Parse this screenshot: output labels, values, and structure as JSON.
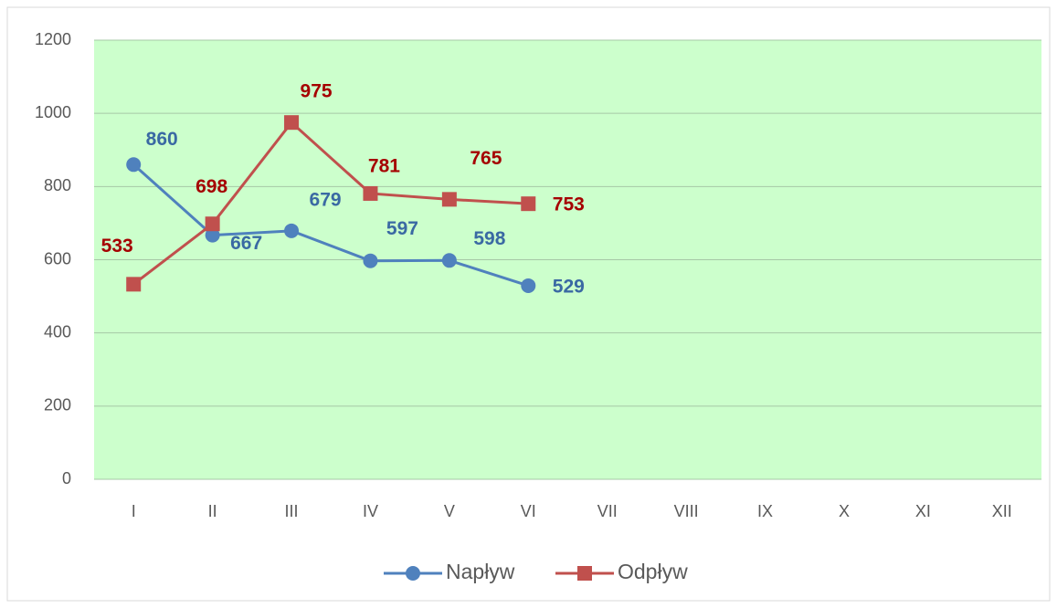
{
  "chart_data": {
    "type": "line",
    "categories": [
      "I",
      "II",
      "III",
      "IV",
      "V",
      "VI",
      "VII",
      "VIII",
      "IX",
      "X",
      "XI",
      "XII"
    ],
    "series": [
      {
        "name": "Napływ",
        "color": "#4f81bd",
        "label_color": "#3a69a3",
        "marker": "circle",
        "values": [
          860,
          667,
          679,
          597,
          598,
          529,
          null,
          null,
          null,
          null,
          null,
          null
        ]
      },
      {
        "name": "Odpływ",
        "color": "#c0504d",
        "label_color": "#a50000",
        "marker": "square",
        "values": [
          533,
          698,
          975,
          781,
          765,
          753,
          null,
          null,
          null,
          null,
          null,
          null
        ]
      }
    ],
    "ylim": [
      0,
      1200
    ],
    "yticks": [
      0,
      200,
      400,
      600,
      800,
      1000,
      1200
    ],
    "grid": true,
    "plot_background": "#ccffcc",
    "legend": "bottom",
    "data_labels": true
  }
}
